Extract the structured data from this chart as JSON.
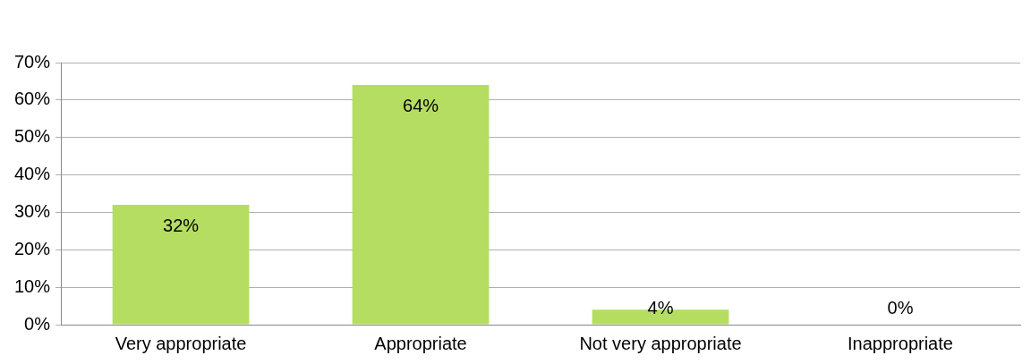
{
  "chart_data": {
    "type": "bar",
    "categories": [
      "Very appropriate",
      "Appropriate",
      "Not very appropriate",
      "Inappropriate"
    ],
    "values": [
      32,
      64,
      4,
      0
    ],
    "color": "#b5dd62",
    "value_labels": [
      "32%",
      "64%",
      "4%",
      "0%"
    ],
    "ylim": [
      0,
      70
    ],
    "yticks": [
      {
        "value": 0,
        "label": "0%"
      },
      {
        "value": 10,
        "label": "10%"
      },
      {
        "value": 20,
        "label": "20%"
      },
      {
        "value": 30,
        "label": "30%"
      },
      {
        "value": 40,
        "label": "40%"
      },
      {
        "value": 50,
        "label": "50%"
      },
      {
        "value": 60,
        "label": "60%"
      },
      {
        "value": 70,
        "label": "70%"
      }
    ],
    "grid": "y",
    "legend": false
  }
}
